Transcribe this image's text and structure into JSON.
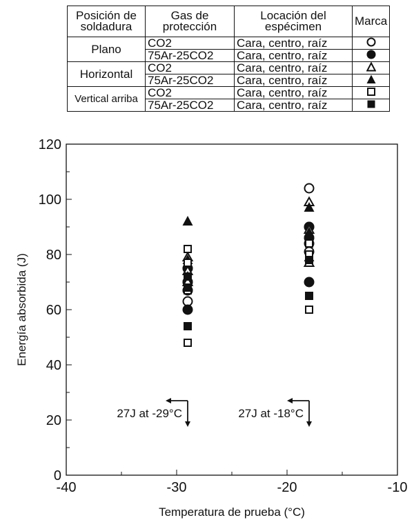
{
  "legend": {
    "headers": {
      "position": "Posición de soldadura",
      "gas": "Gas de protección",
      "location": "Locación del espécimen",
      "mark": "Marca"
    },
    "rows": [
      {
        "position": "Plano",
        "gas": "CO2",
        "location": "Cara, centro, raíz",
        "marker": "circle-open"
      },
      {
        "position": "",
        "gas": "75Ar-25CO2",
        "location": "Cara, centro, raíz",
        "marker": "circle-filled"
      },
      {
        "position": "Horizontal",
        "gas": "CO2",
        "location": "Cara, centro, raíz",
        "marker": "triangle-open"
      },
      {
        "position": "",
        "gas": "75Ar-25CO2",
        "location": "Cara, centro, raíz",
        "marker": "triangle-filled"
      },
      {
        "position": "Vertical arriba",
        "gas": "CO2",
        "location": "Cara, centro, raíz",
        "marker": "square-open"
      },
      {
        "position": "",
        "gas": "75Ar-25CO2",
        "location": "Cara, centro, raíz",
        "marker": "square-filled"
      }
    ]
  },
  "chart_data": {
    "type": "scatter",
    "title": "",
    "xlabel": "Temperatura de prueba (°C)",
    "ylabel": "Energía absorbida (J)",
    "xlim": [
      -40,
      -10
    ],
    "ylim": [
      0,
      120
    ],
    "xticks": [
      -40,
      -30,
      -20,
      -10
    ],
    "yticks": [
      0,
      20,
      40,
      60,
      80,
      100,
      120
    ],
    "grid": false,
    "series": [
      {
        "name": "Plano CO2",
        "marker": "circle-open",
        "x": [
          -29,
          -29,
          -29,
          -29,
          -18,
          -18,
          -18,
          -18
        ],
        "y": [
          63,
          67,
          70,
          75,
          104,
          90,
          84,
          81
        ]
      },
      {
        "name": "Plano 75Ar-25CO2",
        "marker": "circle-filled",
        "x": [
          -29,
          -29,
          -29,
          -29,
          -18,
          -18,
          -18
        ],
        "y": [
          75,
          70,
          67,
          60,
          90,
          86,
          70
        ]
      },
      {
        "name": "Horizontal CO2",
        "marker": "triangle-open",
        "x": [
          -29,
          -29,
          -29,
          -18,
          -18,
          -18
        ],
        "y": [
          79,
          74,
          70,
          99,
          89,
          77
        ]
      },
      {
        "name": "Horizontal 75Ar-25CO2",
        "marker": "triangle-filled",
        "x": [
          -29,
          -29,
          -29,
          -18,
          -18,
          -18
        ],
        "y": [
          92,
          78,
          72,
          97,
          88,
          79
        ]
      },
      {
        "name": "Vertical arriba CO2",
        "marker": "square-open",
        "x": [
          -29,
          -29,
          -29,
          -29,
          -18,
          -18,
          -18
        ],
        "y": [
          82,
          77,
          67,
          48,
          84,
          80,
          60
        ]
      },
      {
        "name": "Vertical arriba 75Ar-25CO2",
        "marker": "square-filled",
        "x": [
          -29,
          -29,
          -29,
          -18,
          -18
        ],
        "y": [
          72,
          68,
          54,
          78,
          65
        ]
      }
    ],
    "annotations": [
      {
        "text": "27J at -29°C",
        "x": -29,
        "y": 27
      },
      {
        "text": "27J at -18°C",
        "x": -18,
        "y": 27
      }
    ]
  }
}
